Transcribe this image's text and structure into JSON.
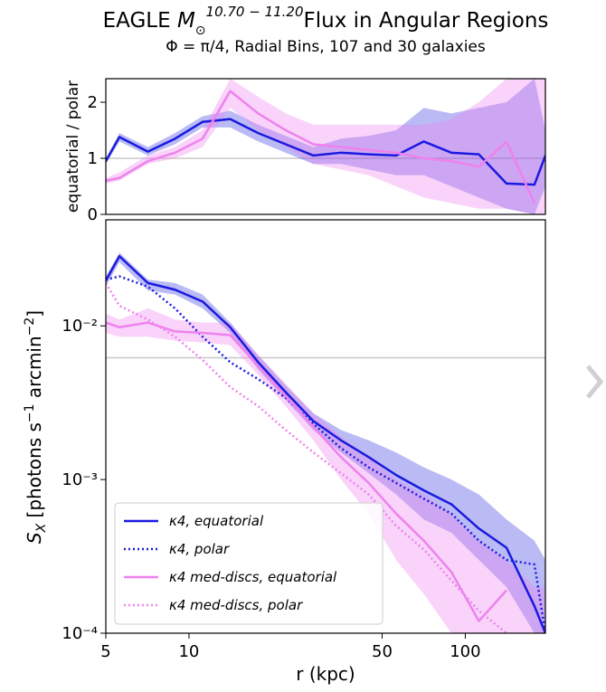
{
  "chart_data": [
    {
      "type": "line",
      "title_prefix": "EAGLE",
      "title_symbol": "M",
      "title_subscript": "⊙",
      "title_superscript": "10.70 − 11.20",
      "title_suffix": "Flux in Angular Regions",
      "subtitle": "Φ = π/4, Radial Bins, 107 and 30 galaxies",
      "ylabel": "equatorial / polar",
      "x": [
        5,
        5.6,
        7.1,
        8.9,
        11.2,
        14.1,
        17.8,
        22.4,
        28.2,
        35.5,
        44.7,
        56.2,
        70.8,
        89.1,
        112,
        141,
        178,
        195
      ],
      "xlim": [
        5,
        195
      ],
      "xscale": "log",
      "ylim": [
        0,
        2.42
      ],
      "yticks": [
        0,
        1,
        2
      ],
      "hline": 1,
      "hline_color": "#c8c8c8",
      "series": [
        {
          "name": "κ4",
          "color": "#1a1adf",
          "linestyle": "solid",
          "band_opacity": 0.3,
          "values": [
            0.95,
            1.38,
            1.12,
            1.35,
            1.65,
            1.7,
            1.45,
            1.25,
            1.05,
            1.1,
            1.07,
            1.05,
            1.3,
            1.1,
            1.07,
            0.55,
            0.53,
            1.05
          ],
          "lower": [
            0.9,
            1.3,
            1.05,
            1.25,
            1.55,
            1.55,
            1.3,
            1.1,
            0.9,
            0.9,
            0.8,
            0.7,
            0.7,
            0.5,
            0.3,
            0.1,
            0,
            0.5
          ],
          "upper": [
            1.0,
            1.45,
            1.2,
            1.45,
            1.75,
            1.85,
            1.6,
            1.4,
            1.2,
            1.35,
            1.4,
            1.5,
            1.9,
            1.8,
            1.9,
            2.0,
            2.42,
            1.5
          ]
        },
        {
          "name": "κ4 med-discs",
          "color": "#ee82ee",
          "linestyle": "solid",
          "band_opacity": 0.35,
          "values": [
            0.6,
            0.65,
            0.95,
            1.1,
            1.35,
            2.2,
            1.8,
            1.5,
            1.25,
            1.2,
            1.15,
            1.1,
            1.0,
            0.95,
            0.85,
            1.3,
            0.2,
            null
          ],
          "lower": [
            0.55,
            0.6,
            0.9,
            1.0,
            1.2,
            1.9,
            1.5,
            1.2,
            0.9,
            0.8,
            0.7,
            0.5,
            0.3,
            0.2,
            0.1,
            0.1,
            0,
            0
          ],
          "upper": [
            0.65,
            0.75,
            1.05,
            1.2,
            1.5,
            2.42,
            2.1,
            1.8,
            1.6,
            1.6,
            1.6,
            1.6,
            1.6,
            1.7,
            2.0,
            2.42,
            2.42,
            2.42
          ]
        }
      ]
    },
    {
      "type": "line",
      "ylabel_parts": [
        "S",
        "X",
        " [photons s",
        "−1",
        " arcmin",
        "−2",
        "]"
      ],
      "xlabel": "r (kpc)",
      "x": [
        5,
        5.6,
        7.1,
        8.9,
        11.2,
        14.1,
        17.8,
        22.4,
        28.2,
        35.5,
        44.7,
        56.2,
        70.8,
        89.1,
        112,
        141,
        178,
        195
      ],
      "xlim": [
        5,
        195
      ],
      "xscale": "log",
      "xticks": [
        5,
        10,
        50,
        100
      ],
      "ylim": [
        0.0001,
        0.049
      ],
      "yscale": "log",
      "yticks": [
        {
          "value": 0.0001,
          "label": "10⁻⁴"
        },
        {
          "value": 0.001,
          "label": "10⁻³"
        },
        {
          "value": 0.01,
          "label": "10⁻²"
        }
      ],
      "hline": 0.0062,
      "hline_color": "#c8c8c8",
      "legend": "lower left",
      "series": [
        {
          "name": "κ4, equatorial",
          "color": "#1a1adf",
          "linestyle": "solid",
          "band_opacity": 0.3,
          "values": [
            0.0197,
            0.0284,
            0.019,
            0.0172,
            0.0144,
            0.0098,
            0.0058,
            0.0037,
            0.0024,
            0.0018,
            0.0014,
            0.00107,
            0.00085,
            0.00069,
            0.00048,
            0.00036,
            0.00015,
            0.0001
          ],
          "lower": [
            0.018,
            0.026,
            0.017,
            0.016,
            0.013,
            0.009,
            0.0052,
            0.0033,
            0.0021,
            0.0015,
            0.0011,
            0.0008,
            0.00055,
            0.00045,
            0.0003,
            0.0002,
            0.0001,
            0.0001
          ],
          "upper": [
            0.021,
            0.03,
            0.02,
            0.019,
            0.016,
            0.0105,
            0.0064,
            0.0041,
            0.0027,
            0.0021,
            0.0018,
            0.0015,
            0.0012,
            0.001,
            0.0008,
            0.00055,
            0.0004,
            0.0003
          ]
        },
        {
          "name": "κ4, polar",
          "color": "#1a1adf",
          "linestyle": "dotted",
          "values": [
            0.02,
            0.021,
            0.018,
            0.013,
            0.0085,
            0.0058,
            0.0045,
            0.0034,
            0.0023,
            0.0016,
            0.0012,
            0.00095,
            0.00075,
            0.0006,
            0.0004,
            0.0003,
            0.00028,
            0.0001
          ]
        },
        {
          "name": "κ4 med-discs, equatorial",
          "color": "#ee82ee",
          "linestyle": "solid",
          "band_opacity": 0.35,
          "values": [
            0.0105,
            0.0098,
            0.0105,
            0.0092,
            0.009,
            0.0087,
            0.0055,
            0.0035,
            0.0022,
            0.0014,
            0.00095,
            0.0006,
            0.0004,
            0.00025,
            0.00012,
            0.00019,
            null,
            null
          ],
          "lower": [
            0.009,
            0.0085,
            0.0085,
            0.008,
            0.0078,
            0.0075,
            0.0048,
            0.003,
            0.0018,
            0.001,
            0.0006,
            0.0003,
            0.00018,
            0.0001,
            0.0001,
            0.0001,
            0.0001,
            0.0001
          ],
          "upper": [
            0.012,
            0.011,
            0.013,
            0.011,
            0.0105,
            0.0105,
            0.0065,
            0.0042,
            0.0027,
            0.0019,
            0.0014,
            0.001,
            0.0008,
            0.0006,
            0.0004,
            0.0003,
            0.0002,
            0.0002
          ]
        },
        {
          "name": "κ4 med-discs, polar",
          "color": "#ee82ee",
          "linestyle": "dotted",
          "values": [
            0.019,
            0.0135,
            0.011,
            0.0085,
            0.006,
            0.004,
            0.003,
            0.0021,
            0.0015,
            0.0011,
            0.0008,
            0.0005,
            0.00035,
            0.00022,
            0.00014,
            0.0001,
            null,
            null
          ]
        }
      ]
    }
  ]
}
